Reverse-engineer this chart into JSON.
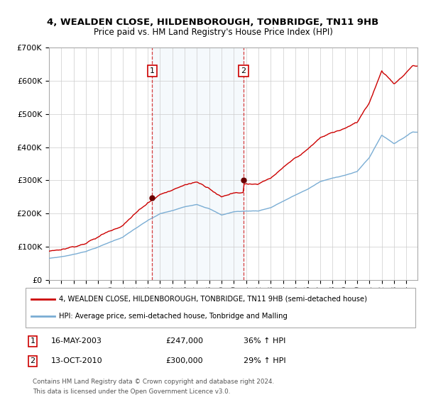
{
  "title": "4, WEALDEN CLOSE, HILDENBOROUGH, TONBRIDGE, TN11 9HB",
  "subtitle": "Price paid vs. HM Land Registry's House Price Index (HPI)",
  "legend_line1": "4, WEALDEN CLOSE, HILDENBOROUGH, TONBRIDGE, TN11 9HB (semi-detached house)",
  "legend_line2": "HPI: Average price, semi-detached house, Tonbridge and Malling",
  "footer1": "Contains HM Land Registry data © Crown copyright and database right 2024.",
  "footer2": "This data is licensed under the Open Government Licence v3.0.",
  "annotation1_label": "1",
  "annotation1_date": "16-MAY-2003",
  "annotation1_price": "£247,000",
  "annotation1_hpi": "36% ↑ HPI",
  "annotation2_label": "2",
  "annotation2_date": "13-OCT-2010",
  "annotation2_price": "£300,000",
  "annotation2_hpi": "29% ↑ HPI",
  "sale1_year": 2003.37,
  "sale1_value": 247000,
  "sale2_year": 2010.78,
  "sale2_value": 300000,
  "red_color": "#cc0000",
  "blue_color": "#7aadd4",
  "annotation_box_color": "#cc0000",
  "shading_color": "#d8e8f5",
  "ylim_min": 0,
  "ylim_max": 700000,
  "xmin": 1995,
  "xmax": 2024.9,
  "background_color": "#ffffff"
}
